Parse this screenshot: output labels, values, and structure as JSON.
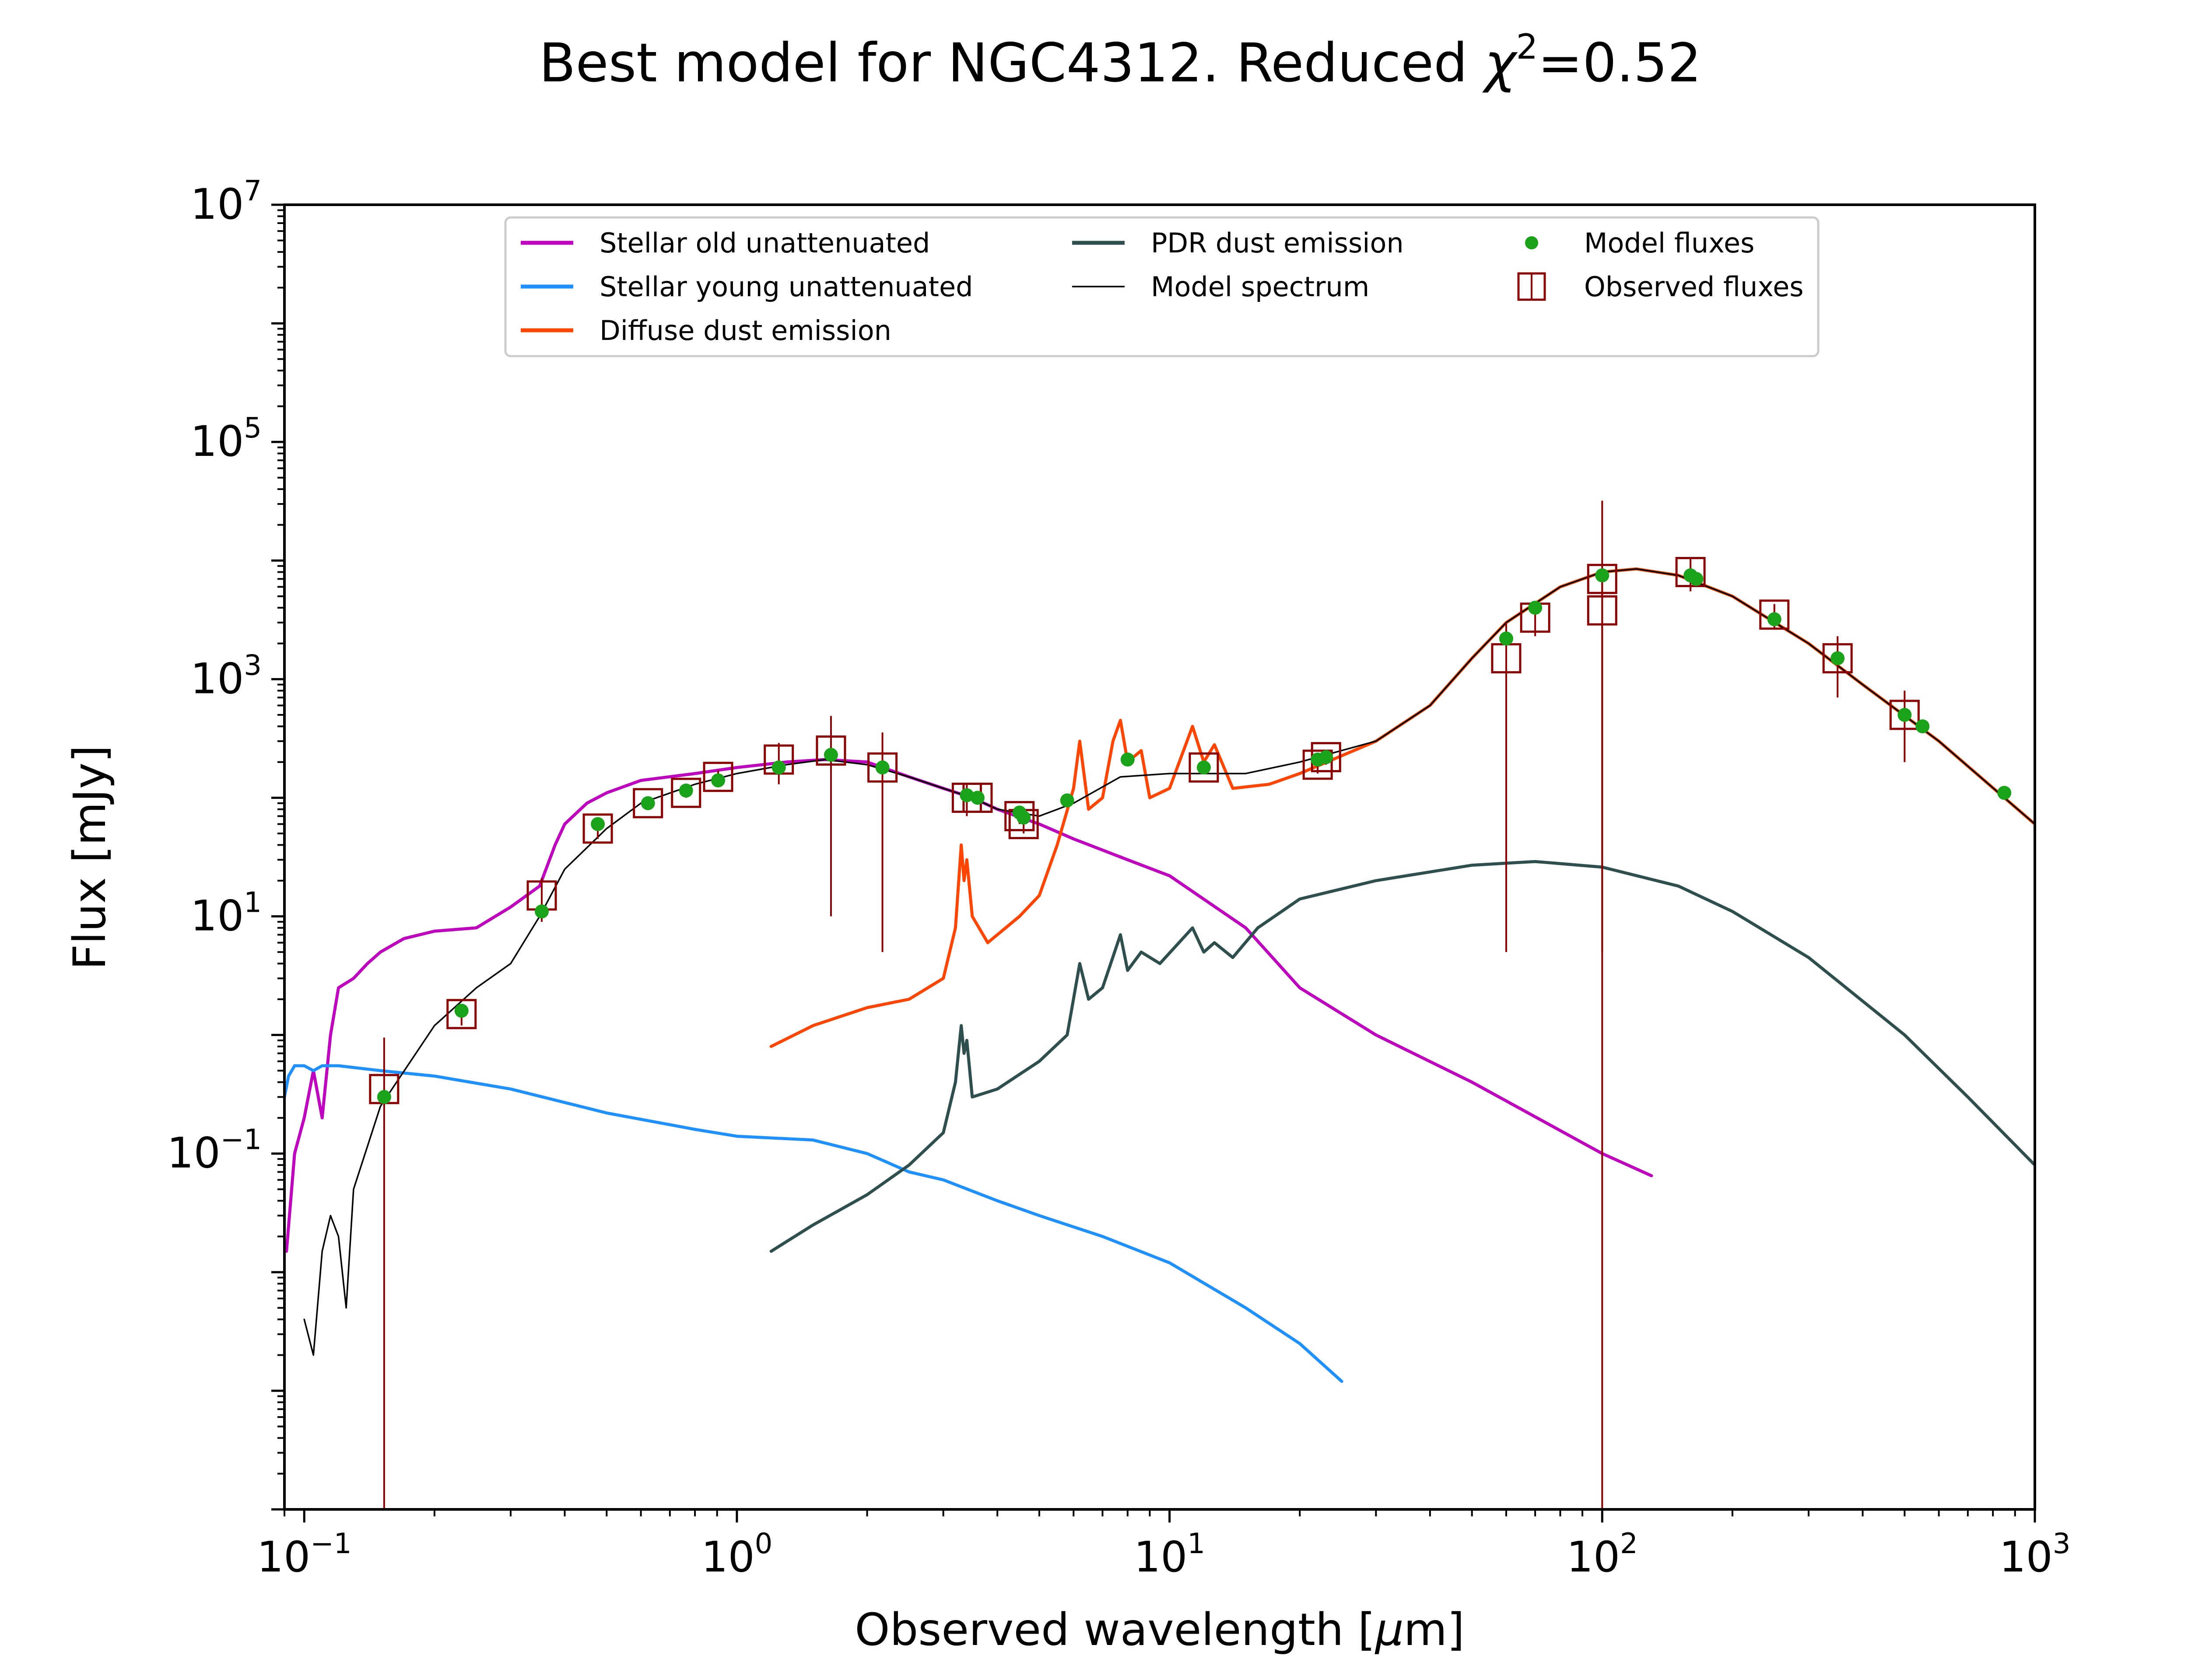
{
  "chart_data": {
    "type": "line",
    "title": "Best model for NGC4312. Reduced χ²=0.52",
    "title_parts": {
      "prefix": "Best model for NGC4312. Reduced ",
      "chi": "χ",
      "sup": "2",
      "suffix": "=0.52"
    },
    "xlabel": "Observed wavelength [μm]",
    "xlabel_parts": {
      "prefix": "Observed wavelength [",
      "mu": "μ",
      "suffix": "m]"
    },
    "ylabel": "Flux [mJy]",
    "xscale": "log",
    "yscale": "log",
    "xlim": [
      0.09,
      1000
    ],
    "ylim": [
      0.0001,
      10000000
    ],
    "x_ticks": [
      {
        "value": 0.1,
        "base": "10",
        "exp": "−1"
      },
      {
        "value": 1,
        "base": "10",
        "exp": "0"
      },
      {
        "value": 10,
        "base": "10",
        "exp": "1"
      },
      {
        "value": 100,
        "base": "10",
        "exp": "2"
      },
      {
        "value": 1000,
        "base": "10",
        "exp": "3"
      }
    ],
    "y_ticks": [
      {
        "value": 0.1,
        "base": "10",
        "exp": "−1"
      },
      {
        "value": 10,
        "base": "10",
        "exp": "1"
      },
      {
        "value": 1000,
        "base": "10",
        "exp": "3"
      },
      {
        "value": 100000,
        "base": "10",
        "exp": "5"
      },
      {
        "value": 10000000,
        "base": "10",
        "exp": "7"
      }
    ],
    "grid": false,
    "legend": {
      "placement": "top-center",
      "columns": [
        [
          "Stellar old unattenuated",
          "Stellar young unattenuated",
          "Diffuse dust emission"
        ],
        [
          "PDR dust emission",
          "Model spectrum"
        ],
        [
          "Model fluxes",
          "Observed fluxes"
        ]
      ]
    },
    "series": [
      {
        "name": "Stellar old unattenuated",
        "color": "#bf00bf",
        "points": [
          [
            0.091,
            0.015
          ],
          [
            0.095,
            0.1
          ],
          [
            0.1,
            0.2
          ],
          [
            0.105,
            0.5
          ],
          [
            0.11,
            0.2
          ],
          [
            0.115,
            1.0
          ],
          [
            0.12,
            2.5
          ],
          [
            0.13,
            3.0
          ],
          [
            0.14,
            4.0
          ],
          [
            0.15,
            5.0
          ],
          [
            0.17,
            6.5
          ],
          [
            0.2,
            7.5
          ],
          [
            0.25,
            8.0
          ],
          [
            0.3,
            12
          ],
          [
            0.35,
            18
          ],
          [
            0.38,
            40
          ],
          [
            0.4,
            60
          ],
          [
            0.45,
            90
          ],
          [
            0.5,
            110
          ],
          [
            0.6,
            140
          ],
          [
            0.8,
            160
          ],
          [
            1.0,
            180
          ],
          [
            1.3,
            200
          ],
          [
            1.6,
            210
          ],
          [
            2.0,
            200
          ],
          [
            2.5,
            150
          ],
          [
            3.0,
            120
          ],
          [
            3.5,
            100
          ],
          [
            4.0,
            80
          ],
          [
            5.0,
            60
          ],
          [
            6.0,
            45
          ],
          [
            8.0,
            30
          ],
          [
            10,
            22
          ],
          [
            15,
            8
          ],
          [
            20,
            2.5
          ],
          [
            30,
            1.0
          ],
          [
            50,
            0.4
          ],
          [
            100,
            0.1
          ],
          [
            130,
            0.065
          ]
        ]
      },
      {
        "name": "Stellar young unattenuated",
        "color": "#1e90ff",
        "points": [
          [
            0.09,
            0.3
          ],
          [
            0.092,
            0.45
          ],
          [
            0.095,
            0.55
          ],
          [
            0.1,
            0.55
          ],
          [
            0.105,
            0.5
          ],
          [
            0.11,
            0.55
          ],
          [
            0.12,
            0.55
          ],
          [
            0.15,
            0.5
          ],
          [
            0.2,
            0.45
          ],
          [
            0.3,
            0.35
          ],
          [
            0.5,
            0.22
          ],
          [
            0.8,
            0.16
          ],
          [
            1.0,
            0.14
          ],
          [
            1.5,
            0.13
          ],
          [
            2.0,
            0.1
          ],
          [
            2.5,
            0.07
          ],
          [
            3.0,
            0.06
          ],
          [
            4.0,
            0.04
          ],
          [
            5.0,
            0.03
          ],
          [
            7.0,
            0.02
          ],
          [
            10,
            0.012
          ],
          [
            15,
            0.005
          ],
          [
            20,
            0.0025
          ],
          [
            25,
            0.0012
          ]
        ]
      },
      {
        "name": "Diffuse dust emission",
        "color": "#ff4500",
        "points": [
          [
            1.2,
            0.8
          ],
          [
            1.5,
            1.2
          ],
          [
            2.0,
            1.7
          ],
          [
            2.5,
            2.0
          ],
          [
            3.0,
            3.0
          ],
          [
            3.2,
            8
          ],
          [
            3.3,
            40
          ],
          [
            3.35,
            20
          ],
          [
            3.4,
            30
          ],
          [
            3.5,
            10
          ],
          [
            3.8,
            6
          ],
          [
            4.5,
            10
          ],
          [
            5.0,
            15
          ],
          [
            5.5,
            40
          ],
          [
            6.0,
            120
          ],
          [
            6.2,
            300
          ],
          [
            6.5,
            80
          ],
          [
            7.0,
            100
          ],
          [
            7.4,
            300
          ],
          [
            7.7,
            450
          ],
          [
            8.0,
            200
          ],
          [
            8.6,
            250
          ],
          [
            9.0,
            100
          ],
          [
            10,
            120
          ],
          [
            11.3,
            400
          ],
          [
            12,
            200
          ],
          [
            12.7,
            280
          ],
          [
            14,
            120
          ],
          [
            17,
            130
          ],
          [
            20,
            160
          ],
          [
            30,
            300
          ],
          [
            40,
            600
          ],
          [
            50,
            1500
          ],
          [
            60,
            3000
          ],
          [
            80,
            6000
          ],
          [
            100,
            8000
          ],
          [
            120,
            8500
          ],
          [
            150,
            7500
          ],
          [
            200,
            5000
          ],
          [
            300,
            2000
          ],
          [
            400,
            900
          ],
          [
            600,
            300
          ],
          [
            1000,
            60
          ]
        ]
      },
      {
        "name": "PDR dust emission",
        "color": "#2f4f4f",
        "points": [
          [
            1.2,
            0.015
          ],
          [
            1.5,
            0.025
          ],
          [
            2.0,
            0.045
          ],
          [
            2.5,
            0.08
          ],
          [
            3.0,
            0.15
          ],
          [
            3.2,
            0.4
          ],
          [
            3.3,
            1.2
          ],
          [
            3.35,
            0.7
          ],
          [
            3.4,
            0.9
          ],
          [
            3.5,
            0.3
          ],
          [
            4.0,
            0.35
          ],
          [
            5.0,
            0.6
          ],
          [
            5.8,
            1.0
          ],
          [
            6.2,
            4.0
          ],
          [
            6.5,
            2.0
          ],
          [
            7.0,
            2.5
          ],
          [
            7.7,
            7.0
          ],
          [
            8.0,
            3.5
          ],
          [
            8.6,
            5.0
          ],
          [
            9.5,
            4.0
          ],
          [
            11.3,
            8.0
          ],
          [
            12,
            5.0
          ],
          [
            12.7,
            6.0
          ],
          [
            14,
            4.5
          ],
          [
            16,
            8
          ],
          [
            20,
            14
          ],
          [
            30,
            20
          ],
          [
            50,
            27
          ],
          [
            70,
            29
          ],
          [
            100,
            26
          ],
          [
            150,
            18
          ],
          [
            200,
            11
          ],
          [
            300,
            4.5
          ],
          [
            500,
            1.0
          ],
          [
            700,
            0.3
          ],
          [
            1000,
            0.08
          ]
        ]
      },
      {
        "name": "Model spectrum",
        "color": "#000000",
        "points": [
          [
            0.1,
            0.004
          ],
          [
            0.105,
            0.002
          ],
          [
            0.11,
            0.015
          ],
          [
            0.115,
            0.03
          ],
          [
            0.12,
            0.02
          ],
          [
            0.125,
            0.005
          ],
          [
            0.13,
            0.05
          ],
          [
            0.15,
            0.25
          ],
          [
            0.2,
            1.2
          ],
          [
            0.25,
            2.5
          ],
          [
            0.3,
            4.0
          ],
          [
            0.35,
            10
          ],
          [
            0.4,
            25
          ],
          [
            0.5,
            55
          ],
          [
            0.6,
            90
          ],
          [
            0.8,
            130
          ],
          [
            1.0,
            160
          ],
          [
            1.3,
            190
          ],
          [
            1.6,
            210
          ],
          [
            2.0,
            190
          ],
          [
            2.5,
            150
          ],
          [
            3.0,
            120
          ],
          [
            3.5,
            100
          ],
          [
            4.0,
            80
          ],
          [
            5.0,
            70
          ],
          [
            6.0,
            90
          ],
          [
            7.7,
            150
          ],
          [
            10,
            160
          ],
          [
            15,
            160
          ],
          [
            20,
            200
          ],
          [
            30,
            300
          ],
          [
            40,
            600
          ],
          [
            50,
            1500
          ],
          [
            60,
            3000
          ],
          [
            80,
            6000
          ],
          [
            100,
            8000
          ],
          [
            120,
            8500
          ],
          [
            150,
            7500
          ],
          [
            200,
            5000
          ],
          [
            300,
            2000
          ],
          [
            400,
            900
          ],
          [
            600,
            300
          ],
          [
            1000,
            60
          ]
        ]
      }
    ],
    "model_fluxes": {
      "name": "Model fluxes",
      "color": "#1aa31a",
      "points": [
        [
          0.153,
          0.3
        ],
        [
          0.231,
          1.6
        ],
        [
          0.354,
          11
        ],
        [
          0.477,
          60
        ],
        [
          0.623,
          90
        ],
        [
          0.763,
          115
        ],
        [
          0.905,
          140
        ],
        [
          1.25,
          180
        ],
        [
          1.65,
          230
        ],
        [
          2.17,
          180
        ],
        [
          3.4,
          105
        ],
        [
          3.6,
          100
        ],
        [
          4.5,
          75
        ],
        [
          4.6,
          68
        ],
        [
          5.8,
          95
        ],
        [
          8.0,
          210
        ],
        [
          12,
          180
        ],
        [
          22,
          210
        ],
        [
          23,
          220
        ],
        [
          60,
          2200
        ],
        [
          70,
          4000
        ],
        [
          100,
          7500
        ],
        [
          160,
          7500
        ],
        [
          165,
          7000
        ],
        [
          250,
          3200
        ],
        [
          350,
          1500
        ],
        [
          500,
          500
        ],
        [
          550,
          400
        ],
        [
          850,
          110
        ]
      ]
    },
    "observed_fluxes": {
      "name": "Observed fluxes",
      "color": "#8b0000",
      "points": [
        [
          0.153,
          0.35,
          0.6
        ],
        [
          0.231,
          1.5,
          0.3
        ],
        [
          0.354,
          15,
          6
        ],
        [
          0.477,
          55,
          10
        ],
        [
          0.623,
          90,
          10
        ],
        [
          0.763,
          110,
          10
        ],
        [
          0.905,
          150,
          20
        ],
        [
          1.25,
          210,
          80
        ],
        [
          1.65,
          250,
          240
        ],
        [
          2.17,
          180,
          175
        ],
        [
          3.4,
          100,
          30
        ],
        [
          3.6,
          100,
          10
        ],
        [
          4.5,
          70,
          10
        ],
        [
          4.6,
          60,
          10
        ],
        [
          12,
          180,
          20
        ],
        [
          22,
          190,
          30
        ],
        [
          23,
          220,
          30
        ],
        [
          60,
          1500,
          1495
        ],
        [
          70,
          3300,
          1000
        ],
        [
          100,
          3800,
          3795
        ],
        [
          100,
          7000,
          25000
        ],
        [
          160,
          8000,
          2500
        ],
        [
          250,
          3500,
          800
        ],
        [
          350,
          1500,
          800
        ],
        [
          500,
          500,
          300
        ]
      ]
    }
  }
}
